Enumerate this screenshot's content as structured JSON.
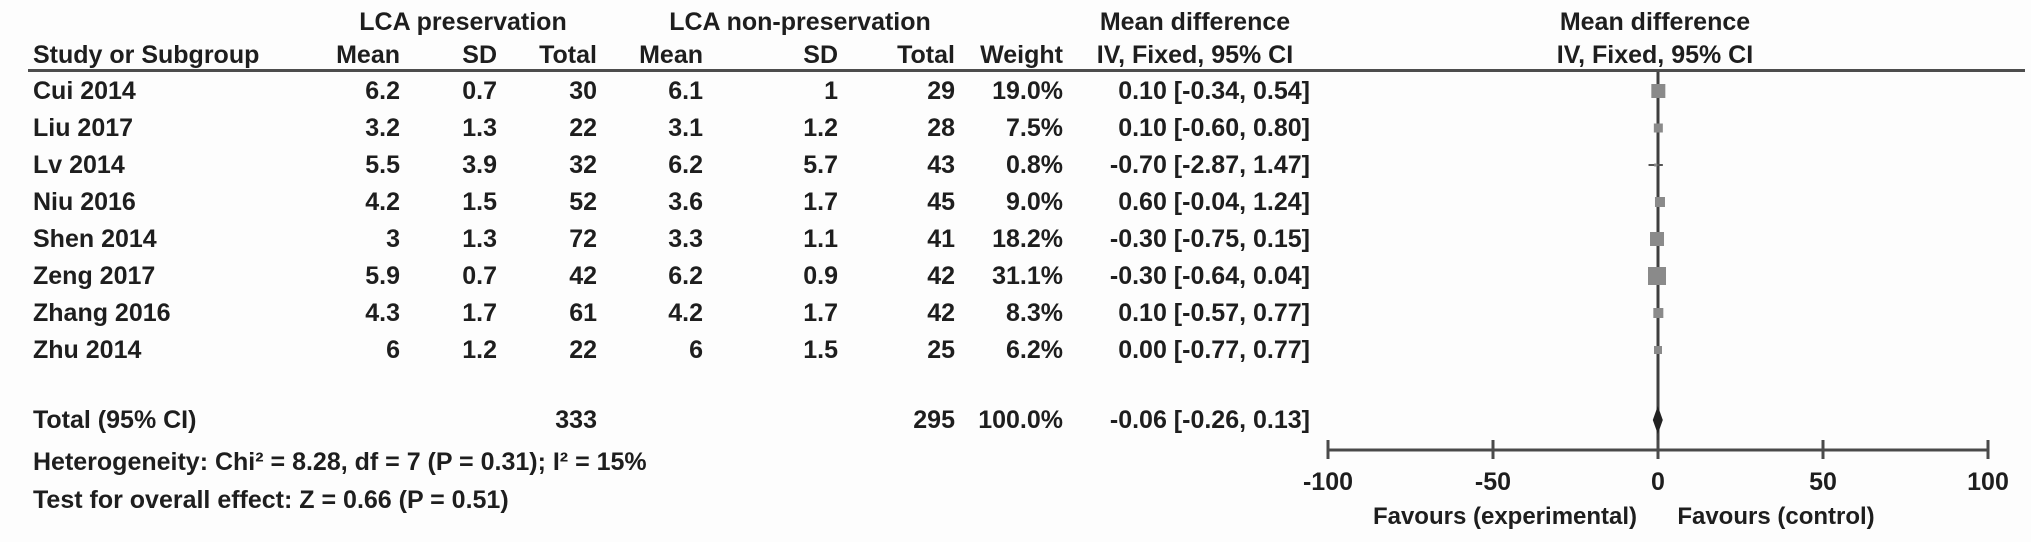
{
  "header": {
    "group1": "LCA preservation",
    "group2": "LCA non-preservation",
    "mean_difference_left": "Mean difference",
    "mean_difference_right": "Mean difference",
    "method_left": "IV, Fixed, 95% CI",
    "method_right": "IV, Fixed, 95% CI",
    "columns": {
      "study": "Study or Subgroup",
      "mean": "Mean",
      "sd": "SD",
      "total": "Total",
      "weight": "Weight"
    }
  },
  "rows": [
    {
      "study": "Cui 2014",
      "mean1": "6.2",
      "sd1": "0.7",
      "total1": "30",
      "mean2": "6.1",
      "sd2": "1",
      "total2": "29",
      "weight": "19.0%",
      "ci": "0.10 [-0.34, 0.54]"
    },
    {
      "study": "Liu 2017",
      "mean1": "3.2",
      "sd1": "1.3",
      "total1": "22",
      "mean2": "3.1",
      "sd2": "1.2",
      "total2": "28",
      "weight": "7.5%",
      "ci": "0.10 [-0.60, 0.80]"
    },
    {
      "study": "Lv 2014",
      "mean1": "5.5",
      "sd1": "3.9",
      "total1": "32",
      "mean2": "6.2",
      "sd2": "5.7",
      "total2": "43",
      "weight": "0.8%",
      "ci": "-0.70 [-2.87, 1.47]"
    },
    {
      "study": "Niu 2016",
      "mean1": "4.2",
      "sd1": "1.5",
      "total1": "52",
      "mean2": "3.6",
      "sd2": "1.7",
      "total2": "45",
      "weight": "9.0%",
      "ci": "0.60 [-0.04, 1.24]"
    },
    {
      "study": "Shen 2014",
      "mean1": "3",
      "sd1": "1.3",
      "total1": "72",
      "mean2": "3.3",
      "sd2": "1.1",
      "total2": "41",
      "weight": "18.2%",
      "ci": "-0.30 [-0.75, 0.15]"
    },
    {
      "study": "Zeng 2017",
      "mean1": "5.9",
      "sd1": "0.7",
      "total1": "42",
      "mean2": "6.2",
      "sd2": "0.9",
      "total2": "42",
      "weight": "31.1%",
      "ci": "-0.30 [-0.64, 0.04]"
    },
    {
      "study": "Zhang 2016",
      "mean1": "4.3",
      "sd1": "1.7",
      "total1": "61",
      "mean2": "4.2",
      "sd2": "1.7",
      "total2": "42",
      "weight": "8.3%",
      "ci": "0.10 [-0.57, 0.77]"
    },
    {
      "study": "Zhu 2014",
      "mean1": "6",
      "sd1": "1.2",
      "total1": "22",
      "mean2": "6",
      "sd2": "1.5",
      "total2": "25",
      "weight": "6.2%",
      "ci": "0.00 [-0.77, 0.77]"
    }
  ],
  "total_row": {
    "label": "Total (95% CI)",
    "total1": "333",
    "total2": "295",
    "weight": "100.0%",
    "ci": "-0.06 [-0.26, 0.13]"
  },
  "footer": {
    "heterogeneity": "Heterogeneity: Chi² = 8.28, df = 7 (P = 0.31); I² = 15%",
    "overall_effect": "Test for overall effect: Z = 0.66 (P = 0.51)"
  },
  "chart_data": {
    "type": "forest",
    "title": "Mean difference",
    "method": "IV, Fixed, 95% CI",
    "studies": [
      "Cui 2014",
      "Liu 2017",
      "Lv 2014",
      "Niu 2016",
      "Shen 2014",
      "Zeng 2017",
      "Zhang 2016",
      "Zhu 2014"
    ],
    "effects": [
      0.1,
      0.1,
      -0.7,
      0.6,
      -0.3,
      -0.3,
      0.1,
      0.0
    ],
    "ci_low": [
      -0.34,
      -0.6,
      -2.87,
      -0.04,
      -0.75,
      -0.64,
      -0.57,
      -0.77
    ],
    "ci_high": [
      0.54,
      0.8,
      1.47,
      1.24,
      0.15,
      0.04,
      0.77,
      0.77
    ],
    "weights_pct": [
      19.0,
      7.5,
      0.8,
      9.0,
      18.2,
      31.1,
      8.3,
      6.2
    ],
    "group1_totals": [
      30,
      22,
      32,
      52,
      72,
      42,
      61,
      22
    ],
    "group2_totals": [
      29,
      28,
      43,
      45,
      41,
      42,
      42,
      25
    ],
    "total_effect": -0.06,
    "total_ci": [
      -0.26,
      0.13
    ],
    "total_n_group1": 333,
    "total_n_group2": 295,
    "axis_ticks": [
      -100,
      -50,
      0,
      50,
      100
    ],
    "axis_range": [
      -100,
      100
    ],
    "xlabel_left": "Favours (experimental)",
    "xlabel_right": "Favours (control)",
    "marker_color": "#8a8a8a",
    "line_color": "#4a4a4a",
    "diamond_color": "#222222"
  }
}
